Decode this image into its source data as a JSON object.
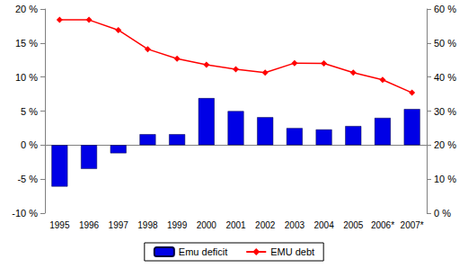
{
  "chart_data": {
    "type": "bar",
    "categories": [
      "1995",
      "1996",
      "1997",
      "1998",
      "1999",
      "2000",
      "2001",
      "2002",
      "2003",
      "2004",
      "2005",
      "2006*",
      "2007*"
    ],
    "series": [
      {
        "name": "Emu deficit",
        "type": "bar",
        "color": "#0000e6",
        "values": [
          -6.1,
          -3.5,
          -1.2,
          1.6,
          1.6,
          6.9,
          5.0,
          4.1,
          2.5,
          2.3,
          2.8,
          4.0,
          5.3
        ]
      },
      {
        "name": "EMU debt",
        "type": "line",
        "axis": "y2",
        "color": "#ff0000",
        "marker": "diamond",
        "values": [
          56.8,
          56.8,
          53.8,
          48.2,
          45.4,
          43.6,
          42.3,
          41.3,
          44.1,
          44.0,
          41.3,
          39.2,
          35.4
        ]
      }
    ],
    "ylim": [
      -10,
      20
    ],
    "yticks": [
      {
        "value": -10,
        "label": "-10 %"
      },
      {
        "value": -5,
        "label": "-5 %"
      },
      {
        "value": 0,
        "label": "0 %"
      },
      {
        "value": 5,
        "label": "5 %"
      },
      {
        "value": 10,
        "label": "10 %"
      },
      {
        "value": 15,
        "label": "15 %"
      },
      {
        "value": 20,
        "label": "20 %"
      }
    ],
    "y2lim": [
      0,
      60
    ],
    "y2ticks": [
      {
        "value": 0,
        "label": "0 %"
      },
      {
        "value": 10,
        "label": "10 %"
      },
      {
        "value": 20,
        "label": "20 %"
      },
      {
        "value": 30,
        "label": "30 %"
      },
      {
        "value": 40,
        "label": "40 %"
      },
      {
        "value": 50,
        "label": "50 %"
      },
      {
        "value": 60,
        "label": "60 %"
      }
    ],
    "grid": false,
    "legend": "bottom"
  }
}
